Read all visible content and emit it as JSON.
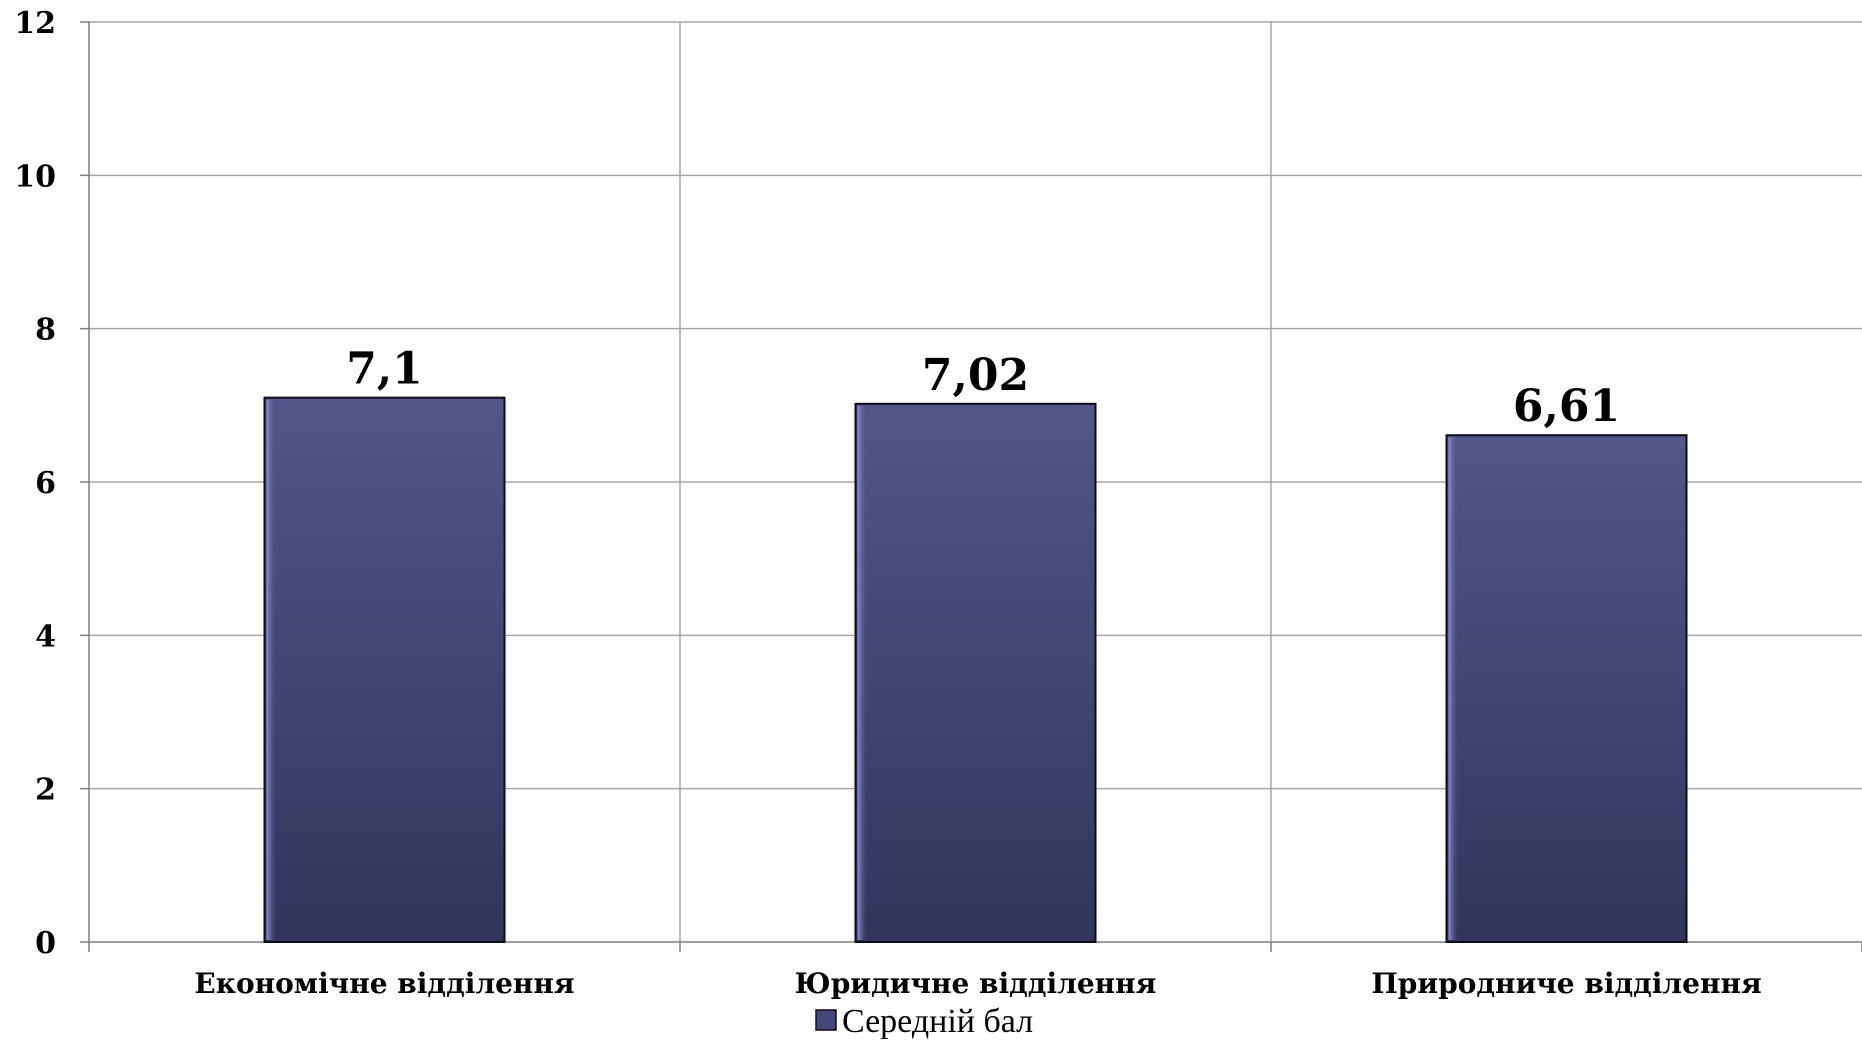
{
  "chart_data": {
    "type": "bar",
    "title": "",
    "xlabel": "",
    "ylabel": "",
    "categories": [
      "Економічне відділення",
      "Юридичне відділення",
      "Природниче відділення"
    ],
    "series": [
      {
        "name": "Середній бал",
        "values": [
          7.1,
          7.02,
          6.61
        ],
        "labels": [
          "7,1",
          "7,02",
          "6,61"
        ]
      }
    ],
    "ylim": [
      0,
      12
    ],
    "yticks": [
      0,
      2,
      4,
      6,
      8,
      10,
      12
    ],
    "grid": true,
    "legend_position": "bottom",
    "colors": {
      "bar": "#45467a",
      "bar_light": "#545588",
      "bar_dark": "#33345c",
      "bar_edge": "#0d0d1a",
      "grid": "#a6a6a6",
      "axis": "#7f7f7f"
    }
  }
}
